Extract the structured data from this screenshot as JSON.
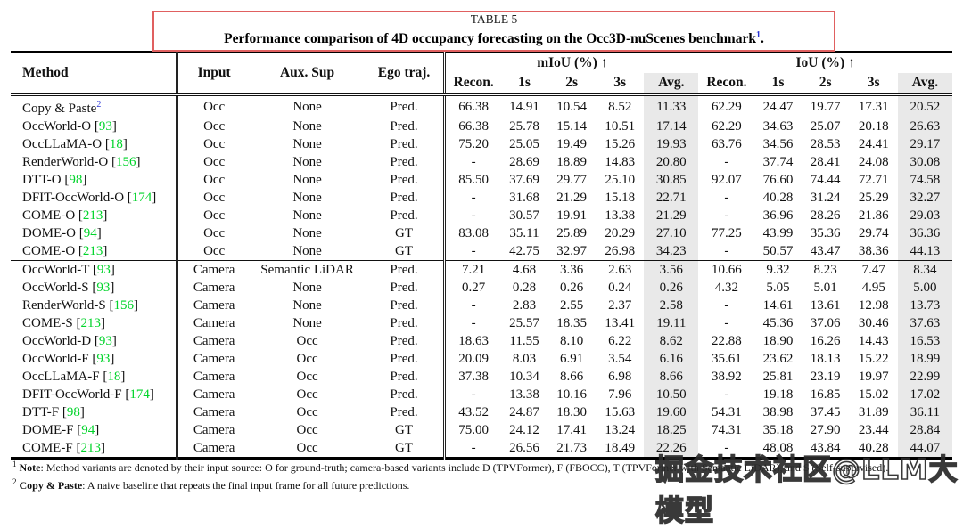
{
  "caption": {
    "label": "TABLE 5",
    "text": "Performance comparison of 4D occupancy forecasting on the Occ3D-nuScenes benchmark",
    "footnote_ref": "1",
    "period": "."
  },
  "header": {
    "method": "Method",
    "input": "Input",
    "aux_sup": "Aux. Sup",
    "ego_traj": "Ego traj.",
    "miou_group": "mIoU (%) ↑",
    "iou_group": "IoU (%) ↑",
    "sub": [
      "Recon.",
      "1s",
      "2s",
      "3s",
      "Avg."
    ]
  },
  "sections": [
    {
      "rows": [
        {
          "method": "Copy & Paste",
          "sup": "2",
          "ref": null,
          "input": "Occ",
          "aux": "None",
          "ego": "Pred.",
          "values": [
            "66.38",
            "14.91",
            "10.54",
            "8.52",
            "11.33",
            "62.29",
            "24.47",
            "19.77",
            "17.31",
            "20.52"
          ]
        },
        {
          "method": "OccWorld-O",
          "sup": null,
          "ref": "93",
          "input": "Occ",
          "aux": "None",
          "ego": "Pred.",
          "values": [
            "66.38",
            "25.78",
            "15.14",
            "10.51",
            "17.14",
            "62.29",
            "34.63",
            "25.07",
            "20.18",
            "26.63"
          ]
        },
        {
          "method": "OccLLaMA-O",
          "sup": null,
          "ref": "18",
          "input": "Occ",
          "aux": "None",
          "ego": "Pred.",
          "values": [
            "75.20",
            "25.05",
            "19.49",
            "15.26",
            "19.93",
            "63.76",
            "34.56",
            "28.53",
            "24.41",
            "29.17"
          ]
        },
        {
          "method": "RenderWorld-O",
          "sup": null,
          "ref": "156",
          "input": "Occ",
          "aux": "None",
          "ego": "Pred.",
          "values": [
            "-",
            "28.69",
            "18.89",
            "14.83",
            "20.80",
            "-",
            "37.74",
            "28.41",
            "24.08",
            "30.08"
          ]
        },
        {
          "method": "DTT-O",
          "sup": null,
          "ref": "98",
          "input": "Occ",
          "aux": "None",
          "ego": "Pred.",
          "values": [
            "85.50",
            "37.69",
            "29.77",
            "25.10",
            "30.85",
            "92.07",
            "76.60",
            "74.44",
            "72.71",
            "74.58"
          ]
        },
        {
          "method": "DFIT-OccWorld-O",
          "sup": null,
          "ref": "174",
          "input": "Occ",
          "aux": "None",
          "ego": "Pred.",
          "values": [
            "-",
            "31.68",
            "21.29",
            "15.18",
            "22.71",
            "-",
            "40.28",
            "31.24",
            "25.29",
            "32.27"
          ]
        },
        {
          "method": "COME-O",
          "sup": null,
          "ref": "213",
          "input": "Occ",
          "aux": "None",
          "ego": "Pred.",
          "values": [
            "-",
            "30.57",
            "19.91",
            "13.38",
            "21.29",
            "-",
            "36.96",
            "28.26",
            "21.86",
            "29.03"
          ]
        },
        {
          "method": "DOME-O",
          "sup": null,
          "ref": "94",
          "input": "Occ",
          "aux": "None",
          "ego": "GT",
          "values": [
            "83.08",
            "35.11",
            "25.89",
            "20.29",
            "27.10",
            "77.25",
            "43.99",
            "35.36",
            "29.74",
            "36.36"
          ]
        },
        {
          "method": "COME-O",
          "sup": null,
          "ref": "213",
          "input": "Occ",
          "aux": "None",
          "ego": "GT",
          "values": [
            "-",
            "42.75",
            "32.97",
            "26.98",
            "34.23",
            "-",
            "50.57",
            "43.47",
            "38.36",
            "44.13"
          ]
        }
      ]
    },
    {
      "rows": [
        {
          "method": "OccWorld-T",
          "sup": null,
          "ref": "93",
          "input": "Camera",
          "aux": "Semantic LiDAR",
          "ego": "Pred.",
          "values": [
            "7.21",
            "4.68",
            "3.36",
            "2.63",
            "3.56",
            "10.66",
            "9.32",
            "8.23",
            "7.47",
            "8.34"
          ]
        },
        {
          "method": "OccWorld-S",
          "sup": null,
          "ref": "93",
          "input": "Camera",
          "aux": "None",
          "ego": "Pred.",
          "values": [
            "0.27",
            "0.28",
            "0.26",
            "0.24",
            "0.26",
            "4.32",
            "5.05",
            "5.01",
            "4.95",
            "5.00"
          ]
        },
        {
          "method": "RenderWorld-S",
          "sup": null,
          "ref": "156",
          "input": "Camera",
          "aux": "None",
          "ego": "Pred.",
          "values": [
            "-",
            "2.83",
            "2.55",
            "2.37",
            "2.58",
            "-",
            "14.61",
            "13.61",
            "12.98",
            "13.73"
          ]
        },
        {
          "method": "COME-S",
          "sup": null,
          "ref": "213",
          "input": "Camera",
          "aux": "None",
          "ego": "Pred.",
          "values": [
            "-",
            "25.57",
            "18.35",
            "13.41",
            "19.11",
            "-",
            "45.36",
            "37.06",
            "30.46",
            "37.63"
          ]
        },
        {
          "method": "OccWorld-D",
          "sup": null,
          "ref": "93",
          "input": "Camera",
          "aux": "Occ",
          "ego": "Pred.",
          "values": [
            "18.63",
            "11.55",
            "8.10",
            "6.22",
            "8.62",
            "22.88",
            "18.90",
            "16.26",
            "14.43",
            "16.53"
          ]
        },
        {
          "method": "OccWorld-F",
          "sup": null,
          "ref": "93",
          "input": "Camera",
          "aux": "Occ",
          "ego": "Pred.",
          "values": [
            "20.09",
            "8.03",
            "6.91",
            "3.54",
            "6.16",
            "35.61",
            "23.62",
            "18.13",
            "15.22",
            "18.99"
          ]
        },
        {
          "method": "OccLLaMA-F",
          "sup": null,
          "ref": "18",
          "input": "Camera",
          "aux": "Occ",
          "ego": "Pred.",
          "values": [
            "37.38",
            "10.34",
            "8.66",
            "6.98",
            "8.66",
            "38.92",
            "25.81",
            "23.19",
            "19.97",
            "22.99"
          ]
        },
        {
          "method": "DFIT-OccWorld-F",
          "sup": null,
          "ref": "174",
          "input": "Camera",
          "aux": "Occ",
          "ego": "Pred.",
          "values": [
            "-",
            "13.38",
            "10.16",
            "7.96",
            "10.50",
            "-",
            "19.18",
            "16.85",
            "15.02",
            "17.02"
          ]
        },
        {
          "method": "DTT-F",
          "sup": null,
          "ref": "98",
          "input": "Camera",
          "aux": "Occ",
          "ego": "Pred.",
          "values": [
            "43.52",
            "24.87",
            "18.30",
            "15.63",
            "19.60",
            "54.31",
            "38.98",
            "37.45",
            "31.89",
            "36.11"
          ]
        },
        {
          "method": "DOME-F",
          "sup": null,
          "ref": "94",
          "input": "Camera",
          "aux": "Occ",
          "ego": "GT",
          "values": [
            "75.00",
            "24.12",
            "17.41",
            "13.24",
            "18.25",
            "74.31",
            "35.18",
            "27.90",
            "23.44",
            "28.84"
          ]
        },
        {
          "method": "COME-F",
          "sup": null,
          "ref": "213",
          "input": "Camera",
          "aux": "Occ",
          "ego": "GT",
          "values": [
            "-",
            "26.56",
            "21.73",
            "18.49",
            "22.26",
            "-",
            "48.08",
            "43.84",
            "40.28",
            "44.07"
          ]
        }
      ]
    }
  ],
  "footnotes": [
    {
      "marker": "1",
      "bold": "Note",
      "text": ": Method variants are denoted by their input source: O for ground-truth; camera-based variants include D (TPVFormer), F (FBOCC), T (TPVFormer with Semantic LiDAR), and S (Self-supervised)."
    },
    {
      "marker": "2",
      "bold": "Copy & Paste",
      "text": ": A naive baseline that repeats the final input frame for all future predictions."
    }
  ],
  "watermark": "掘金技术社区@LLM大模型",
  "colors": {
    "caption_border": "#e06060",
    "citation_green": "#00d42a",
    "footnote_blue": "#2a35d6",
    "avg_shade": "#e9e9e9"
  }
}
